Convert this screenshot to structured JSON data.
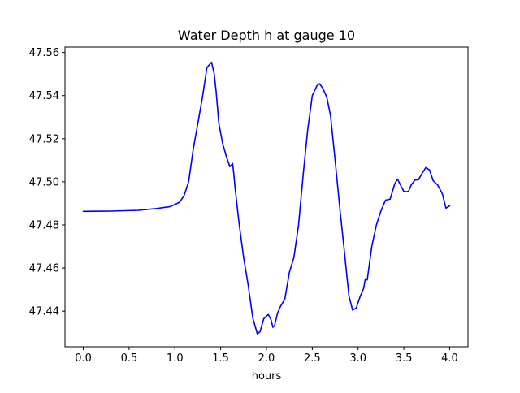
{
  "chart_data": {
    "type": "line",
    "title": "Water Depth h at gauge 10",
    "xlabel": "hours",
    "ylabel": "",
    "xlim": [
      -0.2,
      4.2
    ],
    "ylim": [
      47.4235,
      47.5625
    ],
    "x_ticks": [
      0.0,
      0.5,
      1.0,
      1.5,
      2.0,
      2.5,
      3.0,
      3.5,
      4.0
    ],
    "x_tick_labels": [
      "0.0",
      "0.5",
      "1.0",
      "1.5",
      "2.0",
      "2.5",
      "3.0",
      "3.5",
      "4.0"
    ],
    "y_ticks": [
      47.44,
      47.46,
      47.48,
      47.5,
      47.52,
      47.54,
      47.56
    ],
    "y_tick_labels": [
      "47.44",
      "47.46",
      "47.48",
      "47.50",
      "47.52",
      "47.54",
      "47.56"
    ],
    "grid": false,
    "legend": "none",
    "series": [
      {
        "color": "#0000ff",
        "x": [
          0.0,
          0.3,
          0.6,
          0.8,
          0.95,
          1.05,
          1.1,
          1.15,
          1.2,
          1.25,
          1.3,
          1.35,
          1.4,
          1.43,
          1.45,
          1.48,
          1.52,
          1.56,
          1.6,
          1.63,
          1.64,
          1.66,
          1.7,
          1.75,
          1.8,
          1.85,
          1.9,
          1.93,
          1.97,
          2.02,
          2.05,
          2.07,
          2.09,
          2.12,
          2.15,
          2.2,
          2.25,
          2.3,
          2.35,
          2.4,
          2.45,
          2.5,
          2.55,
          2.58,
          2.62,
          2.66,
          2.7,
          2.75,
          2.8,
          2.85,
          2.9,
          2.94,
          2.98,
          3.02,
          3.06,
          3.08,
          3.1,
          3.15,
          3.2,
          3.25,
          3.3,
          3.35,
          3.4,
          3.43,
          3.47,
          3.5,
          3.55,
          3.58,
          3.62,
          3.66,
          3.7,
          3.74,
          3.78,
          3.82,
          3.87,
          3.92,
          3.96,
          4.0
        ],
        "y": [
          47.4863,
          47.4864,
          47.4868,
          47.4876,
          47.4885,
          47.4905,
          47.4935,
          47.5,
          47.515,
          47.527,
          47.539,
          47.553,
          47.5555,
          47.55,
          47.542,
          47.527,
          47.518,
          47.512,
          47.507,
          47.5085,
          47.505,
          47.496,
          47.481,
          47.465,
          47.452,
          47.437,
          47.4295,
          47.4305,
          47.4365,
          47.4385,
          47.436,
          47.4325,
          47.4335,
          47.439,
          47.442,
          47.4455,
          47.458,
          47.465,
          47.48,
          47.503,
          47.524,
          47.54,
          47.5445,
          47.5455,
          47.543,
          47.539,
          47.5305,
          47.51,
          47.488,
          47.468,
          47.447,
          47.4405,
          47.4415,
          47.4465,
          47.4505,
          47.455,
          47.4545,
          47.47,
          47.48,
          47.4865,
          47.4915,
          47.492,
          47.499,
          47.5013,
          47.498,
          47.4955,
          47.4955,
          47.4985,
          47.5008,
          47.501,
          47.504,
          47.5066,
          47.5055,
          47.5005,
          47.4985,
          47.4945,
          47.4878,
          47.4888
        ]
      }
    ]
  }
}
